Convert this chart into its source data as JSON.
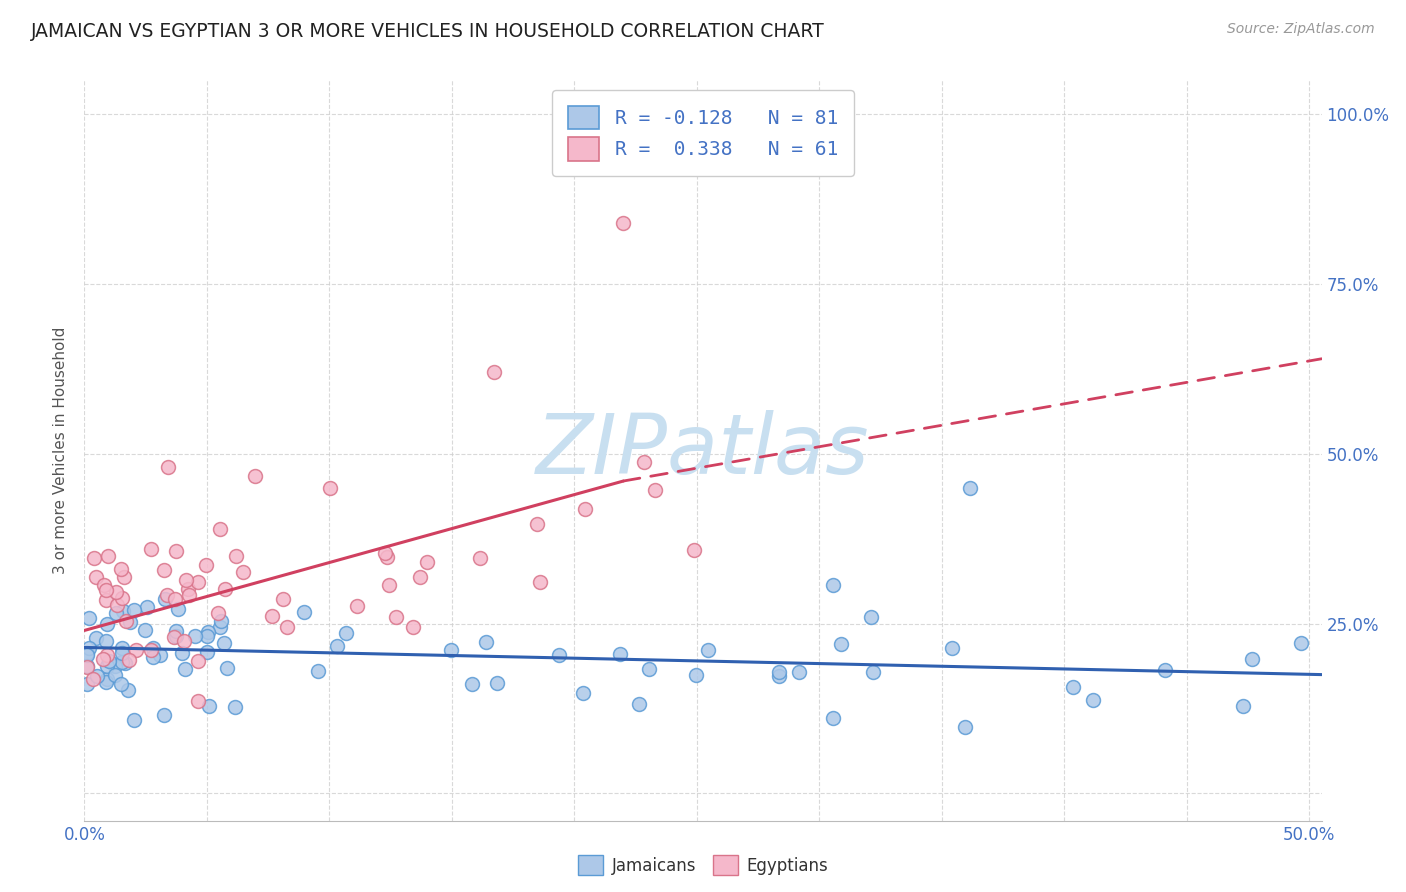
{
  "title": "JAMAICAN VS EGYPTIAN 3 OR MORE VEHICLES IN HOUSEHOLD CORRELATION CHART",
  "source": "Source: ZipAtlas.com",
  "ylabel": "3 or more Vehicles in Household",
  "legend_entries": [
    {
      "label": "R = -0.128   N = 81",
      "facecolor": "#adc8e8",
      "edgecolor": "#5b9bd5"
    },
    {
      "label": "R =  0.338   N = 61",
      "facecolor": "#f5b8cb",
      "edgecolor": "#d9748a"
    }
  ],
  "jamaican_color": "#adc8e8",
  "jamaican_edge": "#5b9bd5",
  "egyptian_color": "#f5b8cb",
  "egyptian_edge": "#d9748a",
  "trend_jamaican_color": "#3060b0",
  "trend_egyptian_color": "#d04060",
  "background_color": "#ffffff",
  "grid_color": "#d0d0d0",
  "title_color": "#222222",
  "title_fontsize": 13.5,
  "source_fontsize": 10,
  "watermark_text": "ZIPatlas",
  "watermark_color": "#c8dff0",
  "watermark_fontsize": 60,
  "tick_label_color": "#4472c4",
  "axis_ylabel_color": "#555555",
  "xlim": [
    0.0,
    0.505
  ],
  "ylim": [
    -0.04,
    1.05
  ],
  "yticks": [
    0.0,
    0.25,
    0.5,
    0.75,
    1.0
  ],
  "ytick_labels": [
    "",
    "25.0%",
    "50.0%",
    "75.0%",
    "100.0%"
  ],
  "xtick_labels_show": {
    "0.0": "0.0%",
    "0.5": "50.0%"
  },
  "bottom_legend_jamaicans": "Jamaicans",
  "bottom_legend_egyptians": "Egyptians"
}
